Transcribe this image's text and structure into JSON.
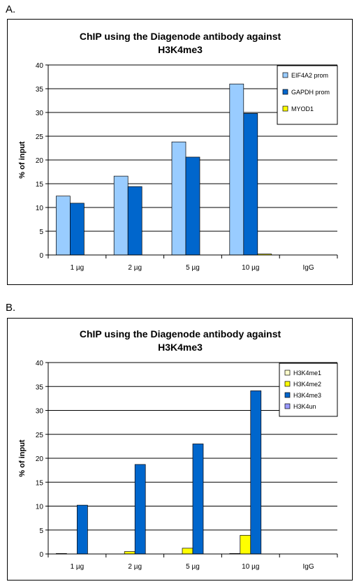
{
  "panels": [
    {
      "label": "A.",
      "chart_data": {
        "type": "bar",
        "title": "ChIP using the Diagenode antibody against",
        "subtitle": "H3K4me3",
        "ylabel": "% of input",
        "xlabel": "",
        "ylim": [
          0,
          40
        ],
        "yticks": [
          0,
          5,
          10,
          15,
          20,
          25,
          30,
          35,
          40
        ],
        "grid": true,
        "legend": "top-right",
        "categories": [
          "1 µg",
          "2 µg",
          "5 µg",
          "10 µg",
          "IgG"
        ],
        "series": [
          {
            "name": "EIF4A2 prom",
            "color": "#99ccff",
            "values": [
              12.4,
              16.6,
              23.8,
              36.0,
              0
            ]
          },
          {
            "name": "GAPDH prom",
            "color": "#0066cc",
            "values": [
              10.9,
              14.4,
              20.6,
              29.8,
              0
            ]
          },
          {
            "name": "MYOD1",
            "color": "#ffff00",
            "values": [
              0,
              0,
              0,
              0.2,
              0
            ]
          }
        ]
      }
    },
    {
      "label": "B.",
      "chart_data": {
        "type": "bar",
        "title": "ChIP using the Diagenode antibody against",
        "subtitle": "H3K4me3",
        "ylabel": "% of input",
        "xlabel": "",
        "ylim": [
          0,
          40
        ],
        "yticks": [
          0,
          5,
          10,
          15,
          20,
          25,
          30,
          35,
          40
        ],
        "grid": true,
        "legend": "top-right",
        "categories": [
          "1 µg",
          "2 µg",
          "5 µg",
          "10 µg",
          "IgG"
        ],
        "series": [
          {
            "name": "H3K4me1",
            "color": "#ffffcc",
            "values": [
              0.1,
              0,
              0,
              0.1,
              0
            ]
          },
          {
            "name": "H3K4me2",
            "color": "#ffff00",
            "values": [
              0,
              0.5,
              1.2,
              3.9,
              0
            ]
          },
          {
            "name": "H3K4me3",
            "color": "#0066cc",
            "values": [
              10.2,
              18.7,
              23.0,
              34.1,
              0
            ]
          },
          {
            "name": "H3K4un",
            "color": "#9999ff",
            "values": [
              0,
              0,
              0,
              0,
              0
            ]
          }
        ]
      }
    }
  ]
}
